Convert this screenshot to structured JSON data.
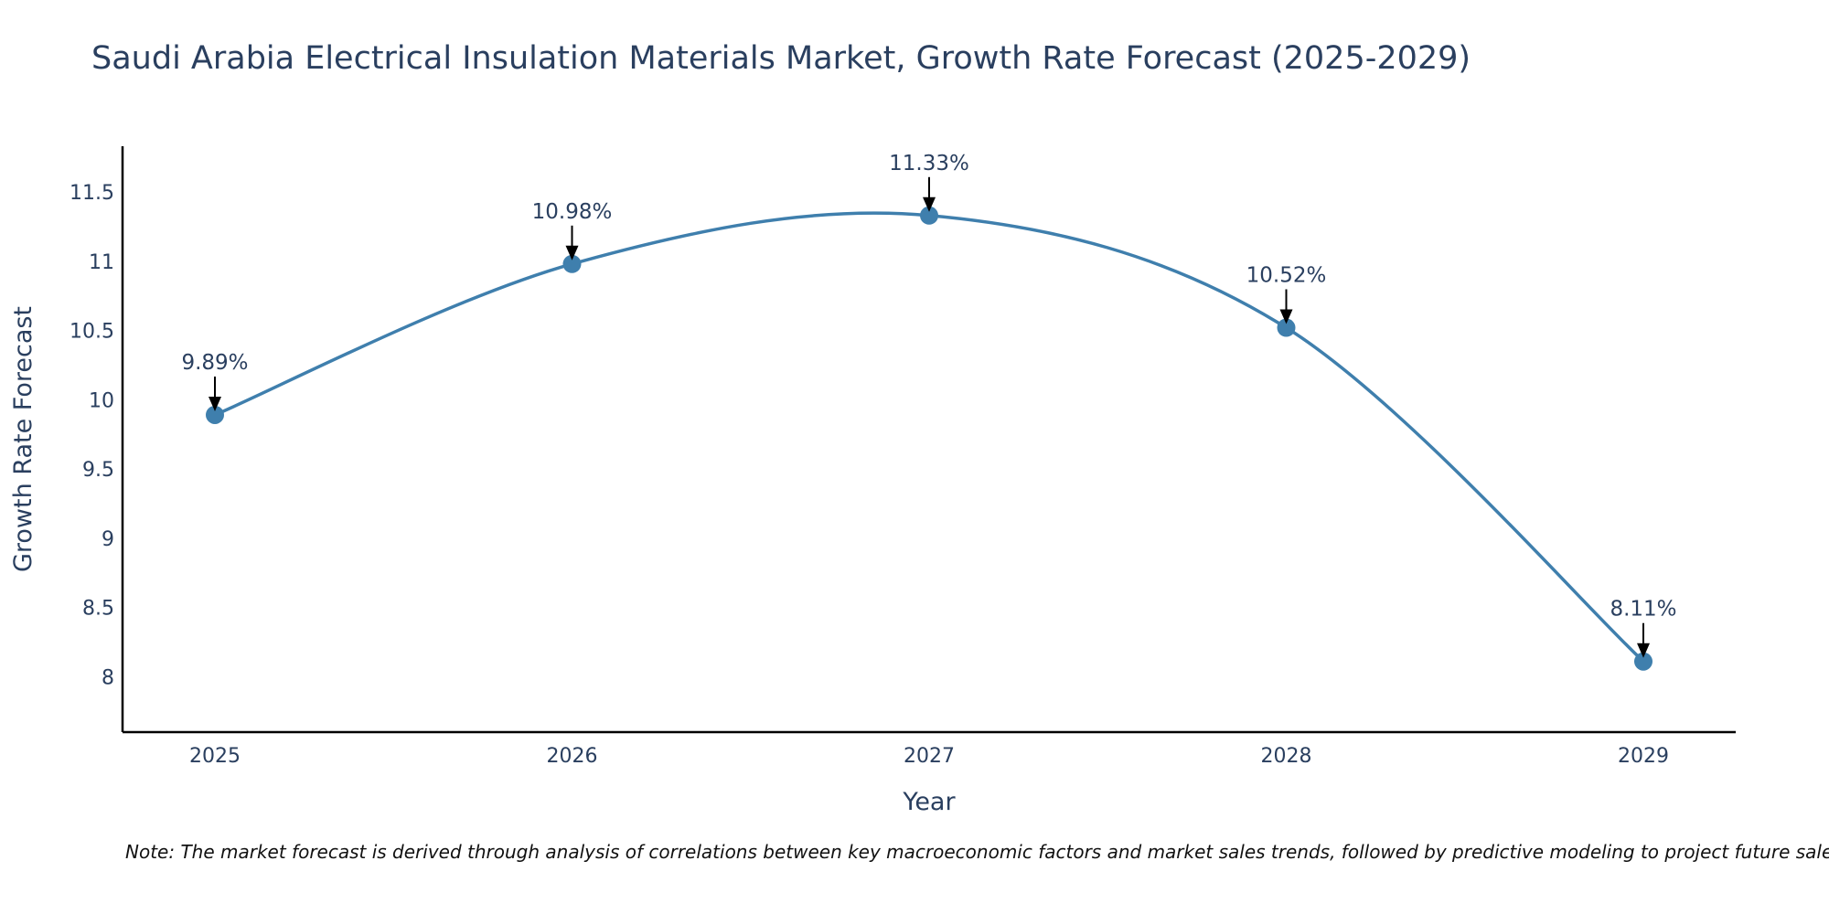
{
  "chart_data": {
    "type": "line",
    "title": "Saudi Arabia Electrical Insulation Materials Market, Growth Rate Forecast (2025-2029)",
    "xlabel": "Year",
    "ylabel": "Growth Rate Forecast",
    "categories": [
      "2025",
      "2026",
      "2027",
      "2028",
      "2029"
    ],
    "values": [
      9.89,
      10.98,
      11.33,
      10.52,
      8.11
    ],
    "data_labels": [
      "9.89%",
      "10.98%",
      "11.33%",
      "10.52%",
      "8.11%"
    ],
    "y_ticks": [
      8,
      8.5,
      9,
      9.5,
      10,
      10.5,
      11,
      11.5
    ],
    "y_tick_labels": [
      "8",
      "8.5",
      "9",
      "9.5",
      "10",
      "10.5",
      "11",
      "11.5"
    ],
    "ylim": [
      7.6,
      11.83
    ],
    "grid": false,
    "line_shape": "spline",
    "colors": {
      "line": "#3f7fad",
      "marker": "#3f7fad",
      "axis": "#000000",
      "text": "#2a3f5f",
      "arrow": "#000000"
    },
    "note": "Note: The market forecast is derived through analysis of correlations between key macroeconomic factors and market sales trends, followed by predictive modeling to project future sales."
  }
}
